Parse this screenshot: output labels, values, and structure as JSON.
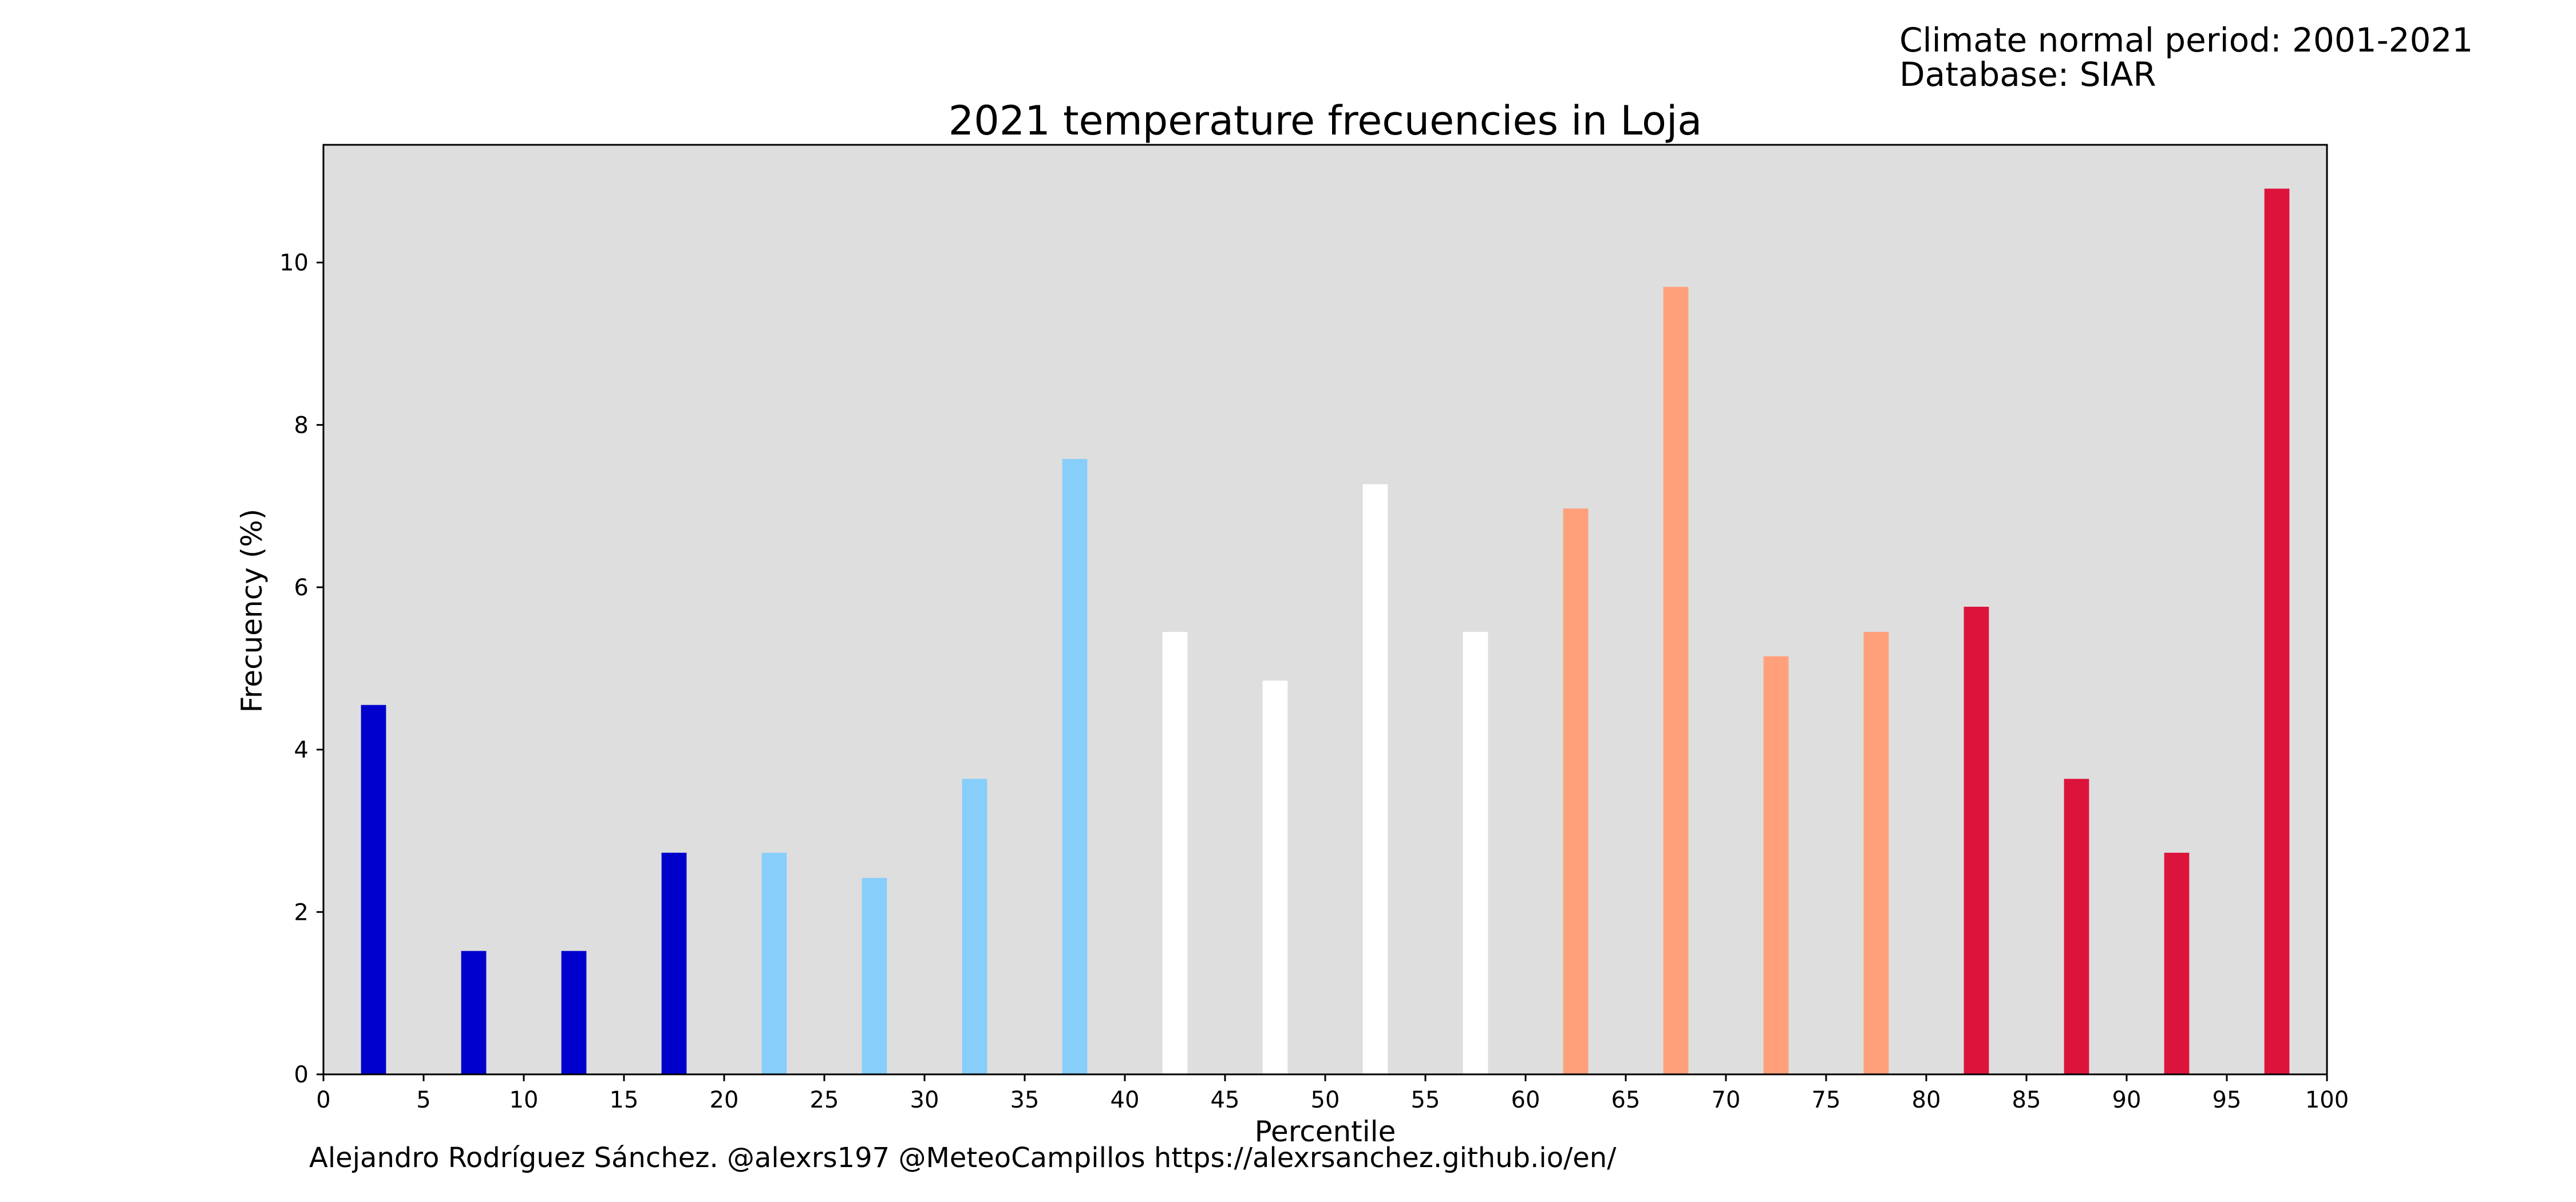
{
  "header": {
    "info_lines": [
      "Climate normal period: 2001-2021",
      "Database: SIAR"
    ]
  },
  "footer": {
    "credit": "Alejandro Rodríguez Sánchez. @alexrs197 @MeteoCampillos   https://alexrsanchez.github.io/en/"
  },
  "colors": {
    "background": "#dedede",
    "very_cold": "#0000cd",
    "cold": "#87cefa",
    "normal": "#ffffff",
    "warm": "#ffa07a",
    "very_warm": "#dc143c"
  },
  "chart_data": {
    "type": "bar",
    "title": "2021 temperature frecuencies in Loja",
    "xlabel": "Percentile",
    "ylabel": "Frecuency (%)",
    "xlim": [
      0,
      100
    ],
    "ylim": [
      0,
      11.45
    ],
    "xticks": [
      0,
      5,
      10,
      15,
      20,
      25,
      30,
      35,
      40,
      45,
      50,
      55,
      60,
      65,
      70,
      75,
      80,
      85,
      90,
      95,
      100
    ],
    "yticks": [
      0,
      2,
      4,
      6,
      8,
      10
    ],
    "grid": false,
    "bar_width": 1.25,
    "x": [
      2.5,
      7.5,
      12.5,
      17.5,
      22.5,
      27.5,
      32.5,
      37.5,
      42.5,
      47.5,
      52.5,
      57.5,
      62.5,
      67.5,
      72.5,
      77.5,
      82.5,
      87.5,
      92.5,
      97.5
    ],
    "values": [
      4.55,
      1.52,
      1.52,
      2.73,
      2.73,
      2.42,
      3.64,
      7.58,
      5.45,
      4.85,
      7.27,
      5.45,
      6.97,
      9.7,
      5.15,
      5.45,
      5.76,
      3.64,
      2.73,
      10.91
    ],
    "bar_colors": [
      "#0000cd",
      "#0000cd",
      "#0000cd",
      "#0000cd",
      "#87cefa",
      "#87cefa",
      "#87cefa",
      "#87cefa",
      "#ffffff",
      "#ffffff",
      "#ffffff",
      "#ffffff",
      "#ffa07a",
      "#ffa07a",
      "#ffa07a",
      "#ffa07a",
      "#dc143c",
      "#dc143c",
      "#dc143c",
      "#dc143c"
    ]
  }
}
